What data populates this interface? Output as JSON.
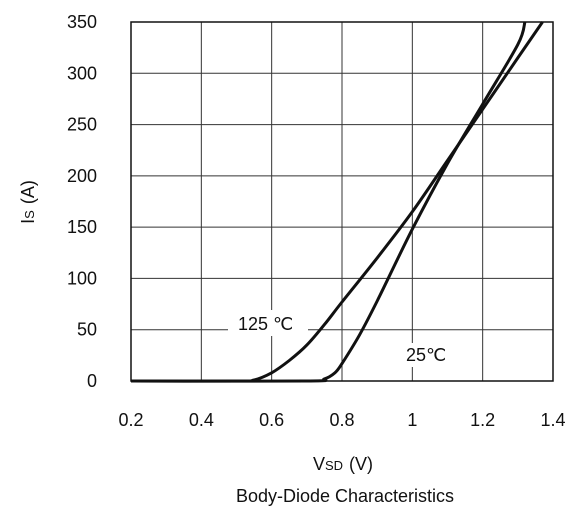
{
  "chart_data": {
    "type": "line",
    "caption": "Body-Diode Characteristics",
    "xlabel": {
      "main": "V",
      "sub": "SD",
      "unit": "(V)"
    },
    "ylabel": {
      "main": "I",
      "sub": "S",
      "unit": "(A)"
    },
    "xlim": [
      0.2,
      1.4
    ],
    "ylim": [
      0,
      350
    ],
    "x_ticks": [
      "0.2",
      "0.4",
      "0.6",
      "0.8",
      "1",
      "1.2",
      "1.4"
    ],
    "y_ticks": [
      "0",
      "50",
      "100",
      "150",
      "200",
      "250",
      "300",
      "350"
    ],
    "grid": true,
    "series": [
      {
        "name": "125 ℃",
        "x": [
          0.2,
          0.5,
          0.55,
          0.6,
          0.65,
          0.7,
          0.75,
          0.8,
          0.9,
          1.0,
          1.1,
          1.2,
          1.3,
          1.37
        ],
        "y": [
          0,
          0,
          1,
          8,
          20,
          35,
          55,
          77,
          120,
          165,
          215,
          265,
          315,
          350
        ]
      },
      {
        "name": "25℃",
        "x": [
          0.2,
          0.7,
          0.75,
          0.78,
          0.8,
          0.85,
          0.9,
          1.0,
          1.1,
          1.2,
          1.3,
          1.32
        ],
        "y": [
          0,
          0,
          2,
          8,
          17,
          45,
          78,
          148,
          212,
          270,
          328,
          350
        ]
      }
    ]
  }
}
